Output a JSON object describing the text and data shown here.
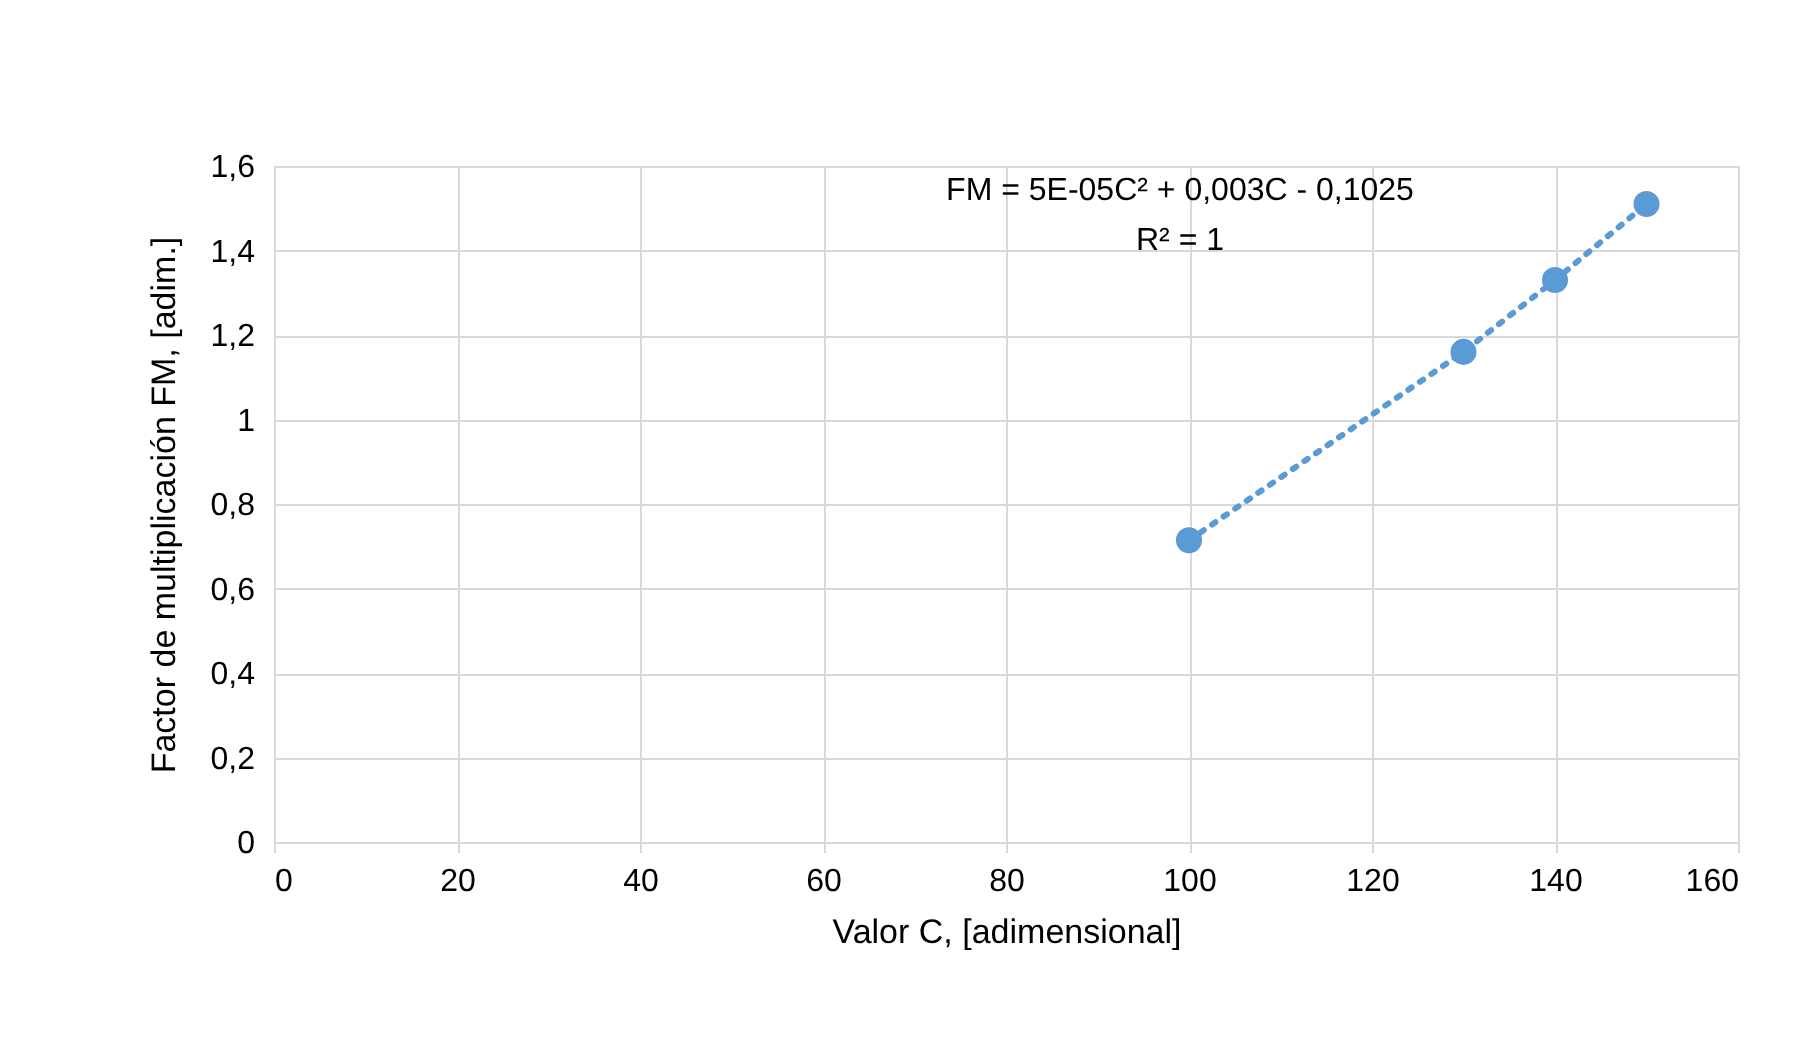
{
  "chart_data": {
    "type": "scatter",
    "xlabel": "Valor C, [adimensional]",
    "ylabel": "Factor de multiplicación FM, [adim.]",
    "series": [
      {
        "color": "#5b9bd5",
        "marker": "circle",
        "x": [
          100,
          130,
          140,
          150
        ],
        "values": [
          0.714,
          1.16,
          1.33,
          1.51
        ]
      },
      {
        "type": "line",
        "color": "#5b9bd5",
        "line_style": "dotted",
        "x": [
          100,
          130,
          140,
          150
        ],
        "values": [
          0.714,
          1.16,
          1.33,
          1.51
        ]
      }
    ],
    "annotations": [
      "FM = 5E-05C² + 0,003C - 0,1025",
      "R² = 1"
    ],
    "xlim": [
      0,
      160
    ],
    "xticks": [
      0,
      20,
      40,
      60,
      80,
      100,
      120,
      140,
      160
    ],
    "ylim": [
      0,
      1.6
    ],
    "yticks": [
      0,
      {
        "value": 0.2,
        "label": "0,2"
      },
      {
        "value": 0.4,
        "label": "0,4"
      },
      {
        "value": 0.6,
        "label": "0,6"
      },
      {
        "value": 0.8,
        "label": "0,8"
      },
      1,
      {
        "value": 1.2,
        "label": "1,2"
      },
      {
        "value": 1.4,
        "label": "1,4"
      },
      {
        "value": 1.6,
        "label": "1,6"
      }
    ],
    "grid": true
  }
}
